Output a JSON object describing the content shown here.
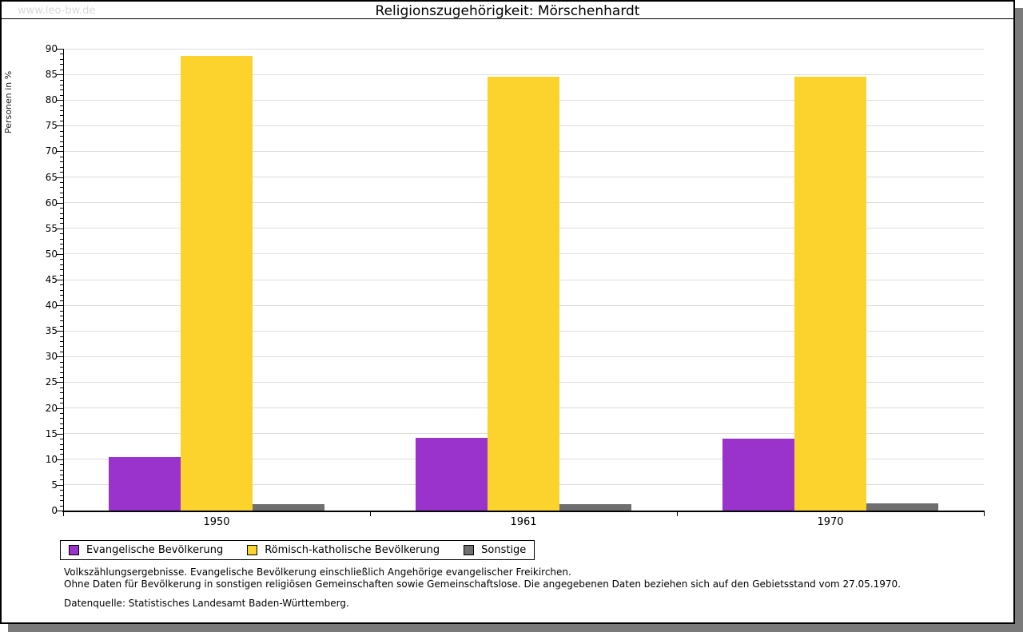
{
  "page": {
    "watermark": "www.leo-bw.de",
    "title": "Religionszugehörigkeit: Mörschenhardt"
  },
  "chart_data": {
    "type": "bar",
    "title": "Religionszugehörigkeit: Mörschenhardt",
    "ylabel": "Personen in %",
    "ylim": [
      0,
      90
    ],
    "y_major_step": 5,
    "y_minor_step": 1,
    "grid": "horizontal",
    "legend_position": "bottom-left",
    "categories": [
      "1950",
      "1961",
      "1970"
    ],
    "series": [
      {
        "name": "Evangelische Bevölkerung",
        "color": "#9933cc",
        "values": [
          10.4,
          14.2,
          14.0
        ]
      },
      {
        "name": "Römisch-katholische Bevölkerung",
        "color": "#fcd32d",
        "values": [
          88.6,
          84.6,
          84.6
        ]
      },
      {
        "name": "Sonstige",
        "color": "#6f6f6f",
        "values": [
          1.2,
          1.3,
          1.4
        ]
      }
    ]
  },
  "footnotes": {
    "line1": "Volkszählungsergebnisse. Evangelische Bevölkerung einschließlich Angehörige evangelischer Freikirchen.",
    "line2": "Ohne Daten für Bevölkerung in sonstigen religiösen Gemeinschaften sowie Gemeinschaftslose. Die angegebenen Daten beziehen sich auf den Gebietsstand vom 27.05.1970.",
    "source": "Datenquelle: Statistisches Landesamt Baden-Württemberg."
  },
  "colors": {
    "evangelisch": "#9933cc",
    "katholisch": "#fcd32d",
    "sonstige": "#6f6f6f",
    "gridline": "#dddddd",
    "shadow": "#7a7a7a",
    "watermark": "#d9d9d9"
  }
}
